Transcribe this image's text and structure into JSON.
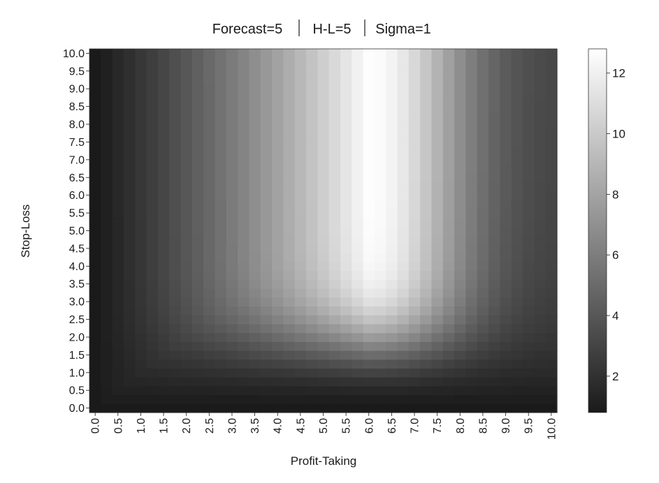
{
  "chart_data": {
    "type": "heatmap",
    "title_parts": [
      "Forecast=5",
      "H-L=5",
      "Sigma=1"
    ],
    "xlabel": "Profit-Taking",
    "ylabel": "Stop-Loss",
    "x_tick_labels": [
      "0.0",
      "0.5",
      "1.0",
      "1.5",
      "2.0",
      "2.5",
      "3.0",
      "3.5",
      "4.0",
      "4.5",
      "5.0",
      "5.5",
      "6.0",
      "6.5",
      "7.0",
      "7.5",
      "8.0",
      "8.5",
      "9.0",
      "9.5",
      "10.0"
    ],
    "y_tick_labels": [
      "0.0",
      "0.5",
      "1.0",
      "1.5",
      "2.0",
      "2.5",
      "3.0",
      "3.5",
      "4.0",
      "4.5",
      "5.0",
      "5.5",
      "6.0",
      "6.5",
      "7.0",
      "7.5",
      "8.0",
      "8.5",
      "9.0",
      "9.5",
      "10.0"
    ],
    "xlim": [
      0,
      10
    ],
    "ylim": [
      0,
      10
    ],
    "grid_points_per_axis": 41,
    "colormap": "gray",
    "color_low": "#1a1a1a",
    "color_high": "#ffffff",
    "colorbar": {
      "range": [
        0.8,
        12.8
      ],
      "ticks": [
        2,
        4,
        6,
        8,
        10,
        12
      ],
      "tick_labels": [
        "2",
        "4",
        "6",
        "8",
        "10",
        "12"
      ]
    },
    "surface_description": {
      "peak_profit_taking": 6.0,
      "peak_value": 12.8,
      "min_value": 0.8,
      "plateau_stop_loss_above": 5.0
    }
  }
}
